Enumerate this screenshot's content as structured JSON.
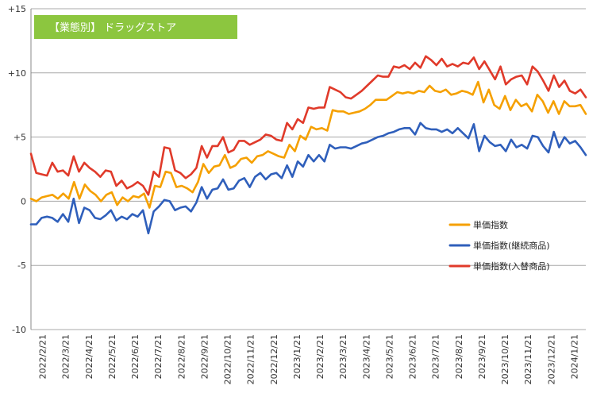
{
  "chart_data": {
    "type": "line",
    "title": "【業態別】 ドラッグストア",
    "title_box_color": "#8cc63f",
    "y_tick_labels": [
      "+15",
      "+10",
      "+5",
      "0",
      "-5",
      "-10"
    ],
    "ylim": [
      -10,
      15
    ],
    "grid": "horizontal",
    "legend_position": "right-middle",
    "x_tick_labels": [
      "2022/2/21",
      "2022/3/21",
      "2022/4/21",
      "2022/5/21",
      "2022/6/21",
      "2022/7/21",
      "2022/8/21",
      "2022/9/21",
      "2022/10/21",
      "2022/11/21",
      "2022/12/21",
      "2023/1/21",
      "2023/2/21",
      "2023/3/21",
      "2023/4/21",
      "2023/5/21",
      "2023/6/21",
      "2023/7/21",
      "2023/8/21",
      "2023/9/21",
      "2023/10/21",
      "2023/11/21",
      "2023/12/21",
      "2024/1/21"
    ],
    "series": [
      {
        "name": "単価指数",
        "color": "#f5a000",
        "values": [
          0.2,
          0.0,
          0.3,
          0.4,
          0.5,
          0.2,
          0.6,
          0.2,
          1.5,
          0.2,
          1.3,
          0.8,
          0.5,
          0.0,
          0.5,
          0.7,
          -0.3,
          0.3,
          0.0,
          0.4,
          0.3,
          0.6,
          -0.5,
          1.2,
          1.1,
          2.3,
          2.2,
          1.1,
          1.2,
          1.0,
          0.7,
          1.5,
          2.9,
          2.2,
          2.7,
          2.8,
          3.6,
          2.6,
          2.8,
          3.3,
          3.4,
          3.0,
          3.5,
          3.6,
          3.9,
          3.7,
          3.5,
          3.4,
          4.4,
          3.9,
          5.1,
          4.8,
          5.8,
          5.6,
          5.7,
          5.5,
          7.1,
          7.0,
          7.0,
          6.8,
          6.9,
          7.0,
          7.2,
          7.5,
          7.9,
          7.9,
          7.9,
          8.2,
          8.5,
          8.4,
          8.5,
          8.4,
          8.6,
          8.5,
          9.0,
          8.6,
          8.5,
          8.7,
          8.3,
          8.4,
          8.6,
          8.5,
          8.3,
          9.3,
          7.7,
          8.7,
          7.5,
          7.2,
          8.2,
          7.1,
          7.9,
          7.4,
          7.6,
          7.0,
          8.3,
          7.8,
          6.9,
          7.8,
          6.8,
          7.8,
          7.4,
          7.4,
          7.5,
          6.8
        ]
      },
      {
        "name": "単価指数(継続商品)",
        "color": "#2f5fbb",
        "values": [
          -1.8,
          -1.8,
          -1.3,
          -1.2,
          -1.3,
          -1.6,
          -1.0,
          -1.6,
          0.2,
          -1.7,
          -0.5,
          -0.7,
          -1.3,
          -1.4,
          -1.1,
          -0.7,
          -1.5,
          -1.2,
          -1.4,
          -1.0,
          -1.2,
          -0.7,
          -2.5,
          -0.8,
          -0.4,
          0.1,
          0.0,
          -0.7,
          -0.5,
          -0.4,
          -0.8,
          -0.1,
          1.1,
          0.2,
          0.9,
          1.0,
          1.7,
          0.9,
          1.0,
          1.6,
          1.8,
          1.1,
          1.9,
          2.2,
          1.7,
          2.1,
          2.2,
          1.8,
          2.8,
          1.9,
          3.1,
          2.7,
          3.6,
          3.1,
          3.6,
          3.1,
          4.4,
          4.1,
          4.2,
          4.2,
          4.1,
          4.3,
          4.5,
          4.6,
          4.8,
          5.0,
          5.1,
          5.3,
          5.4,
          5.6,
          5.7,
          5.7,
          5.2,
          6.1,
          5.7,
          5.6,
          5.6,
          5.4,
          5.6,
          5.3,
          5.7,
          5.3,
          4.9,
          6.0,
          3.9,
          5.1,
          4.6,
          4.3,
          4.4,
          3.9,
          4.8,
          4.2,
          4.4,
          4.1,
          5.1,
          5.0,
          4.3,
          3.8,
          5.4,
          4.2,
          5.0,
          4.5,
          4.7,
          4.2,
          3.6
        ]
      },
      {
        "name": "単価指数(入替商品)",
        "color": "#e03a2a",
        "values": [
          3.7,
          2.2,
          2.1,
          2.0,
          3.0,
          2.3,
          2.4,
          2.0,
          3.5,
          2.3,
          3.0,
          2.6,
          2.3,
          1.9,
          2.4,
          2.3,
          1.2,
          1.6,
          1.0,
          1.2,
          1.5,
          1.2,
          0.5,
          2.3,
          1.9,
          4.2,
          4.1,
          2.4,
          2.2,
          1.8,
          2.1,
          2.6,
          4.3,
          3.4,
          4.3,
          4.3,
          5.0,
          3.8,
          4.0,
          4.7,
          4.7,
          4.4,
          4.6,
          4.8,
          5.2,
          5.1,
          4.8,
          4.7,
          6.1,
          5.6,
          6.4,
          6.1,
          7.3,
          7.2,
          7.3,
          7.3,
          8.9,
          8.7,
          8.5,
          8.1,
          8.0,
          8.3,
          8.6,
          9.0,
          9.4,
          9.8,
          9.7,
          9.7,
          10.5,
          10.4,
          10.6,
          10.3,
          10.8,
          10.4,
          11.3,
          11.0,
          10.6,
          11.1,
          10.5,
          10.7,
          10.5,
          10.8,
          10.7,
          11.2,
          10.3,
          10.9,
          10.2,
          9.5,
          10.5,
          9.1,
          9.5,
          9.7,
          9.8,
          9.1,
          10.5,
          10.1,
          9.4,
          8.6,
          9.8,
          8.9,
          9.4,
          8.6,
          8.4,
          8.7,
          8.1
        ]
      }
    ]
  }
}
